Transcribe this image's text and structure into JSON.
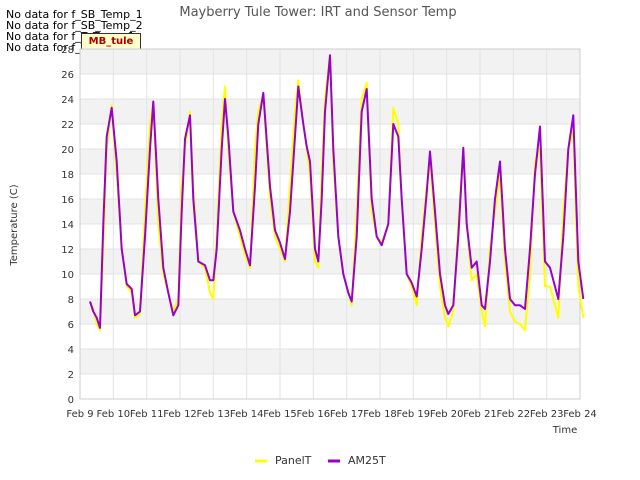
{
  "no_data_notes": [
    "No data for f_SB_Temp_1",
    "No data for f_SB_Temp_2",
    "No data for f_T_Temp_1",
    "No data for f_T_Temp_2"
  ],
  "badge": {
    "label": "MB_tule"
  },
  "chart_data": {
    "type": "line",
    "title": "Mayberry Tule Tower: IRT and Sensor Temp",
    "xlabel": "Time",
    "ylabel": "Temperature (C)",
    "ylim": [
      0,
      28
    ],
    "yticks": [
      0,
      2,
      4,
      6,
      8,
      10,
      12,
      14,
      16,
      18,
      20,
      22,
      24,
      26,
      28
    ],
    "xlim": [
      9,
      24
    ],
    "xticks": [
      {
        "v": 9,
        "label": "Feb 9"
      },
      {
        "v": 10,
        "label": "Feb 10"
      },
      {
        "v": 11,
        "label": "Feb 11"
      },
      {
        "v": 12,
        "label": "Feb 12"
      },
      {
        "v": 13,
        "label": "Feb 13"
      },
      {
        "v": 14,
        "label": "Feb 14"
      },
      {
        "v": 15,
        "label": "Feb 15"
      },
      {
        "v": 16,
        "label": "Feb 16"
      },
      {
        "v": 17,
        "label": "Feb 17"
      },
      {
        "v": 18,
        "label": "Feb 18"
      },
      {
        "v": 19,
        "label": "Feb 19"
      },
      {
        "v": 20,
        "label": "Feb 20"
      },
      {
        "v": 21,
        "label": "Feb 21"
      },
      {
        "v": 22,
        "label": "Feb 22"
      },
      {
        "v": 23,
        "label": "Feb 23"
      },
      {
        "v": 24,
        "label": "Feb 24"
      }
    ],
    "grid": true,
    "legend_position": "bottom-center",
    "series": [
      {
        "name": "PanelT",
        "color": "#ffff00",
        "points": [
          [
            9.3,
            7.8
          ],
          [
            9.4,
            7.2
          ],
          [
            9.5,
            6.0
          ],
          [
            9.6,
            5.5
          ],
          [
            9.7,
            12
          ],
          [
            9.8,
            20
          ],
          [
            9.95,
            23.5
          ],
          [
            10.1,
            18
          ],
          [
            10.25,
            12
          ],
          [
            10.4,
            9
          ],
          [
            10.55,
            8.5
          ],
          [
            10.65,
            6.5
          ],
          [
            10.8,
            6.8
          ],
          [
            10.95,
            15
          ],
          [
            11.1,
            22
          ],
          [
            11.2,
            23.7
          ],
          [
            11.35,
            14
          ],
          [
            11.5,
            10
          ],
          [
            11.65,
            8.5
          ],
          [
            11.8,
            7.0
          ],
          [
            11.95,
            8
          ],
          [
            12.05,
            17
          ],
          [
            12.15,
            20
          ],
          [
            12.3,
            23
          ],
          [
            12.4,
            17
          ],
          [
            12.55,
            11
          ],
          [
            12.75,
            10.5
          ],
          [
            12.9,
            8.5
          ],
          [
            13.0,
            8
          ],
          [
            13.1,
            13
          ],
          [
            13.25,
            22
          ],
          [
            13.35,
            25
          ],
          [
            13.45,
            20
          ],
          [
            13.6,
            15
          ],
          [
            13.8,
            13
          ],
          [
            13.95,
            11.5
          ],
          [
            14.1,
            10.5
          ],
          [
            14.25,
            20
          ],
          [
            14.35,
            23
          ],
          [
            14.5,
            24.3
          ],
          [
            14.7,
            16
          ],
          [
            14.85,
            13
          ],
          [
            15.0,
            12
          ],
          [
            15.15,
            11
          ],
          [
            15.3,
            17
          ],
          [
            15.45,
            23
          ],
          [
            15.55,
            25.5
          ],
          [
            15.7,
            22
          ],
          [
            15.8,
            20
          ],
          [
            15.9,
            18
          ],
          [
            16.05,
            11
          ],
          [
            16.15,
            10.5
          ],
          [
            16.25,
            18
          ],
          [
            16.35,
            24
          ],
          [
            16.5,
            27.5
          ],
          [
            16.6,
            19
          ],
          [
            16.75,
            13
          ],
          [
            16.9,
            10
          ],
          [
            17.05,
            8.5
          ],
          [
            17.15,
            7.5
          ],
          [
            17.3,
            15
          ],
          [
            17.45,
            24
          ],
          [
            17.6,
            25.3
          ],
          [
            17.75,
            15
          ],
          [
            17.9,
            13
          ],
          [
            18.05,
            12.5
          ],
          [
            18.25,
            14
          ],
          [
            18.4,
            23.3
          ],
          [
            18.55,
            22
          ],
          [
            18.65,
            16
          ],
          [
            18.8,
            10
          ],
          [
            18.95,
            9
          ],
          [
            19.1,
            7.5
          ],
          [
            19.25,
            13
          ],
          [
            19.4,
            17
          ],
          [
            19.5,
            19
          ],
          [
            19.65,
            14
          ],
          [
            19.8,
            9
          ],
          [
            19.95,
            6.5
          ],
          [
            20.05,
            5.8
          ],
          [
            20.2,
            7
          ],
          [
            20.35,
            14
          ],
          [
            20.5,
            20
          ],
          [
            20.6,
            14
          ],
          [
            20.75,
            9.5
          ],
          [
            20.9,
            10
          ],
          [
            21.05,
            7
          ],
          [
            21.15,
            5.8
          ],
          [
            21.3,
            12
          ],
          [
            21.45,
            15
          ],
          [
            21.6,
            18
          ],
          [
            21.75,
            11
          ],
          [
            21.9,
            7
          ],
          [
            22.05,
            6.2
          ],
          [
            22.2,
            6
          ],
          [
            22.35,
            5.5
          ],
          [
            22.5,
            10
          ],
          [
            22.65,
            19
          ],
          [
            22.8,
            20
          ],
          [
            22.95,
            9
          ],
          [
            23.1,
            9
          ],
          [
            23.25,
            7.5
          ],
          [
            23.35,
            6.5
          ],
          [
            23.5,
            15
          ],
          [
            23.65,
            20
          ],
          [
            23.8,
            21.5
          ],
          [
            23.95,
            9
          ],
          [
            24.1,
            6.5
          ]
        ]
      },
      {
        "name": "AM25T",
        "color": "#9900cc",
        "points": [
          [
            9.3,
            7.8
          ],
          [
            9.4,
            7.0
          ],
          [
            9.5,
            6.5
          ],
          [
            9.6,
            5.7
          ],
          [
            9.7,
            14
          ],
          [
            9.8,
            21
          ],
          [
            9.95,
            23.3
          ],
          [
            10.1,
            19
          ],
          [
            10.25,
            12
          ],
          [
            10.4,
            9.2
          ],
          [
            10.55,
            8.8
          ],
          [
            10.65,
            6.7
          ],
          [
            10.8,
            7.0
          ],
          [
            10.95,
            13
          ],
          [
            11.1,
            20
          ],
          [
            11.2,
            23.8
          ],
          [
            11.35,
            16
          ],
          [
            11.5,
            10.5
          ],
          [
            11.65,
            8.5
          ],
          [
            11.8,
            6.7
          ],
          [
            11.95,
            7.5
          ],
          [
            12.05,
            15
          ],
          [
            12.15,
            20.8
          ],
          [
            12.3,
            22.7
          ],
          [
            12.4,
            16
          ],
          [
            12.55,
            11
          ],
          [
            12.75,
            10.7
          ],
          [
            12.9,
            9.5
          ],
          [
            13.0,
            9.5
          ],
          [
            13.1,
            12
          ],
          [
            13.25,
            20
          ],
          [
            13.35,
            24
          ],
          [
            13.45,
            21
          ],
          [
            13.6,
            15
          ],
          [
            13.8,
            13.5
          ],
          [
            13.95,
            12
          ],
          [
            14.1,
            10.7
          ],
          [
            14.25,
            17
          ],
          [
            14.35,
            22
          ],
          [
            14.5,
            24.5
          ],
          [
            14.7,
            17
          ],
          [
            14.85,
            13.5
          ],
          [
            15.0,
            12.5
          ],
          [
            15.15,
            11.2
          ],
          [
            15.3,
            15
          ],
          [
            15.45,
            21
          ],
          [
            15.55,
            25
          ],
          [
            15.7,
            22
          ],
          [
            15.8,
            20.2
          ],
          [
            15.9,
            19
          ],
          [
            16.05,
            12
          ],
          [
            16.15,
            11.0
          ],
          [
            16.25,
            16
          ],
          [
            16.35,
            23
          ],
          [
            16.5,
            27.5
          ],
          [
            16.6,
            20
          ],
          [
            16.75,
            13
          ],
          [
            16.9,
            10
          ],
          [
            17.05,
            8.5
          ],
          [
            17.15,
            7.8
          ],
          [
            17.3,
            13
          ],
          [
            17.45,
            23
          ],
          [
            17.6,
            24.8
          ],
          [
            17.75,
            16
          ],
          [
            17.9,
            13
          ],
          [
            18.05,
            12.3
          ],
          [
            18.25,
            14
          ],
          [
            18.4,
            22
          ],
          [
            18.55,
            21
          ],
          [
            18.65,
            16
          ],
          [
            18.8,
            10
          ],
          [
            18.95,
            9.3
          ],
          [
            19.1,
            8.2
          ],
          [
            19.25,
            12
          ],
          [
            19.4,
            16.5
          ],
          [
            19.5,
            19.8
          ],
          [
            19.65,
            15
          ],
          [
            19.8,
            10
          ],
          [
            19.95,
            7.5
          ],
          [
            20.05,
            6.8
          ],
          [
            20.2,
            7.5
          ],
          [
            20.35,
            13
          ],
          [
            20.5,
            20.1
          ],
          [
            20.6,
            14
          ],
          [
            20.75,
            10.5
          ],
          [
            20.9,
            11
          ],
          [
            21.05,
            7.5
          ],
          [
            21.15,
            7.2
          ],
          [
            21.3,
            11
          ],
          [
            21.45,
            16
          ],
          [
            21.6,
            19
          ],
          [
            21.75,
            12
          ],
          [
            21.9,
            8
          ],
          [
            22.05,
            7.5
          ],
          [
            22.2,
            7.5
          ],
          [
            22.35,
            7.2
          ],
          [
            22.5,
            12
          ],
          [
            22.65,
            18
          ],
          [
            22.8,
            21.8
          ],
          [
            22.95,
            11
          ],
          [
            23.1,
            10.5
          ],
          [
            23.25,
            9
          ],
          [
            23.35,
            8
          ],
          [
            23.5,
            13
          ],
          [
            23.65,
            20
          ],
          [
            23.8,
            22.7
          ],
          [
            23.95,
            11
          ],
          [
            24.1,
            8
          ]
        ]
      }
    ]
  }
}
